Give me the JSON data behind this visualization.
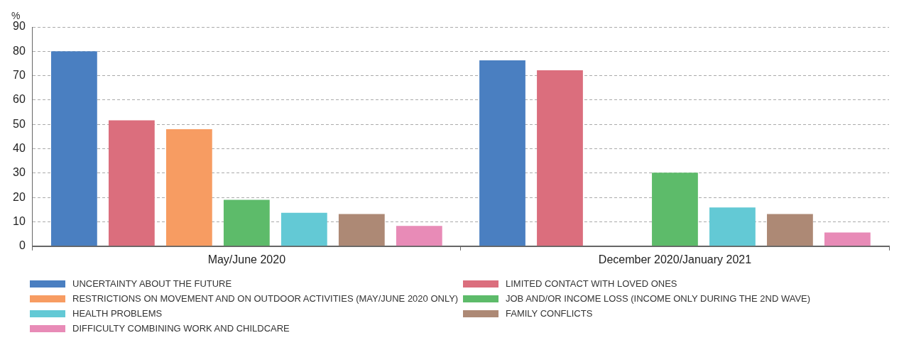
{
  "chart_data": {
    "type": "bar",
    "ylabel": "%",
    "categories": [
      "May/June 2020",
      "December 2020/January 2021"
    ],
    "series": [
      {
        "name": "UNCERTAINTY ABOUT THE FUTURE",
        "color": "#4a7fc1",
        "values": [
          80,
          76.3
        ]
      },
      {
        "name": "LIMITED CONTACT WITH LOVED ONES",
        "color": "#db6e7d",
        "values": [
          51.7,
          72.2
        ]
      },
      {
        "name": "RESTRICTIONS ON MOVEMENT AND ON OUTDOOR ACTIVITIES (MAY/JUNE 2020 ONLY)",
        "color": "#f79c62",
        "values": [
          48,
          null
        ]
      },
      {
        "name": "JOB AND/OR INCOME LOSS (INCOME ONLY DURING THE 2ND WAVE)",
        "color": "#5dbb6a",
        "values": [
          19,
          30.2
        ]
      },
      {
        "name": "HEALTH PROBLEMS",
        "color": "#63c9d5",
        "values": [
          13.7,
          15.9
        ]
      },
      {
        "name": "FAMILY CONFLICTS",
        "color": "#ad8975",
        "values": [
          13.2,
          13.2
        ]
      },
      {
        "name": "DIFFICULTY COMBINING WORK AND CHILDCARE",
        "color": "#e88bb7",
        "values": [
          8.3,
          5.6
        ]
      }
    ],
    "ylim": [
      0,
      90
    ],
    "yticks": [
      0,
      10,
      20,
      30,
      40,
      50,
      60,
      70,
      80,
      90
    ],
    "grid": "y",
    "legend": "bottom"
  }
}
